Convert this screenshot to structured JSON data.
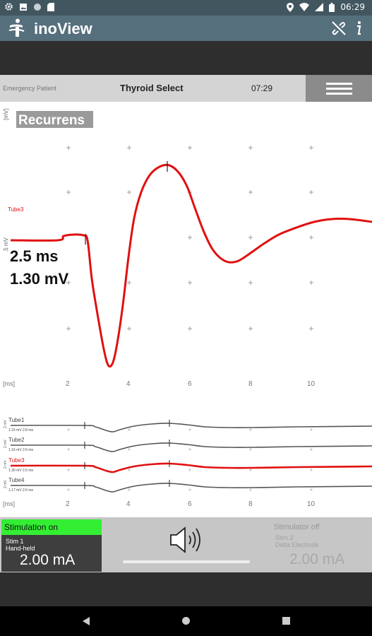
{
  "status_bar": {
    "time": "06:29",
    "left_icons": [
      "settings-icon",
      "image-icon",
      "circle-icon",
      "sd-card-icon"
    ],
    "right_icons": [
      "location-icon",
      "wifi-icon",
      "signal-icon",
      "battery-icon"
    ]
  },
  "app_bar": {
    "title": "inoView",
    "actions": [
      "no-link-icon",
      "info-icon"
    ]
  },
  "header": {
    "patient": "Emergency Patient",
    "procedure": "Thyroid Select",
    "time": "07:29"
  },
  "main_plot": {
    "channel_title": "Recurrens",
    "y_label": "[mV]",
    "y_scale": ".5 mV",
    "x_label": "[ms]",
    "x_ticks": [
      "2",
      "4",
      "6",
      "8",
      "10"
    ],
    "trace_label": "Tube3",
    "latency": "2.5 ms",
    "amplitude": "1.30 mV",
    "trace_color": "#e01010"
  },
  "overview": {
    "x_label": "[ms]",
    "x_ticks": [
      "2",
      "4",
      "6",
      "8",
      "10"
    ],
    "scale_label": "2 mV",
    "channels": [
      {
        "name": "Tube1",
        "info": "1.15 mV 2.8 ms",
        "color": "#555555"
      },
      {
        "name": "Tube2",
        "info": "1.16 mV 2.6 ms",
        "color": "#555555"
      },
      {
        "name": "Tube3",
        "info": "1.30 mV 2.5 ms",
        "color": "#e01010"
      },
      {
        "name": "Tube4",
        "info": "1.17 mV 2.6 ms",
        "color": "#555555"
      }
    ]
  },
  "stimulation": {
    "status_on": "Stimulation on",
    "stim1_name": "Stim 1",
    "stim1_type": "Hand-held",
    "stim1_value": "2.00 mA",
    "status_off": "Stimulator off",
    "stim2_name": "Stim 2",
    "stim2_type": "Delta Electrode",
    "stim2_value": "2.00 mA",
    "volume": 1.0,
    "on_color": "#33ee33"
  },
  "nav_bar": {
    "icons": [
      "back-icon",
      "home-icon",
      "recents-icon"
    ]
  }
}
